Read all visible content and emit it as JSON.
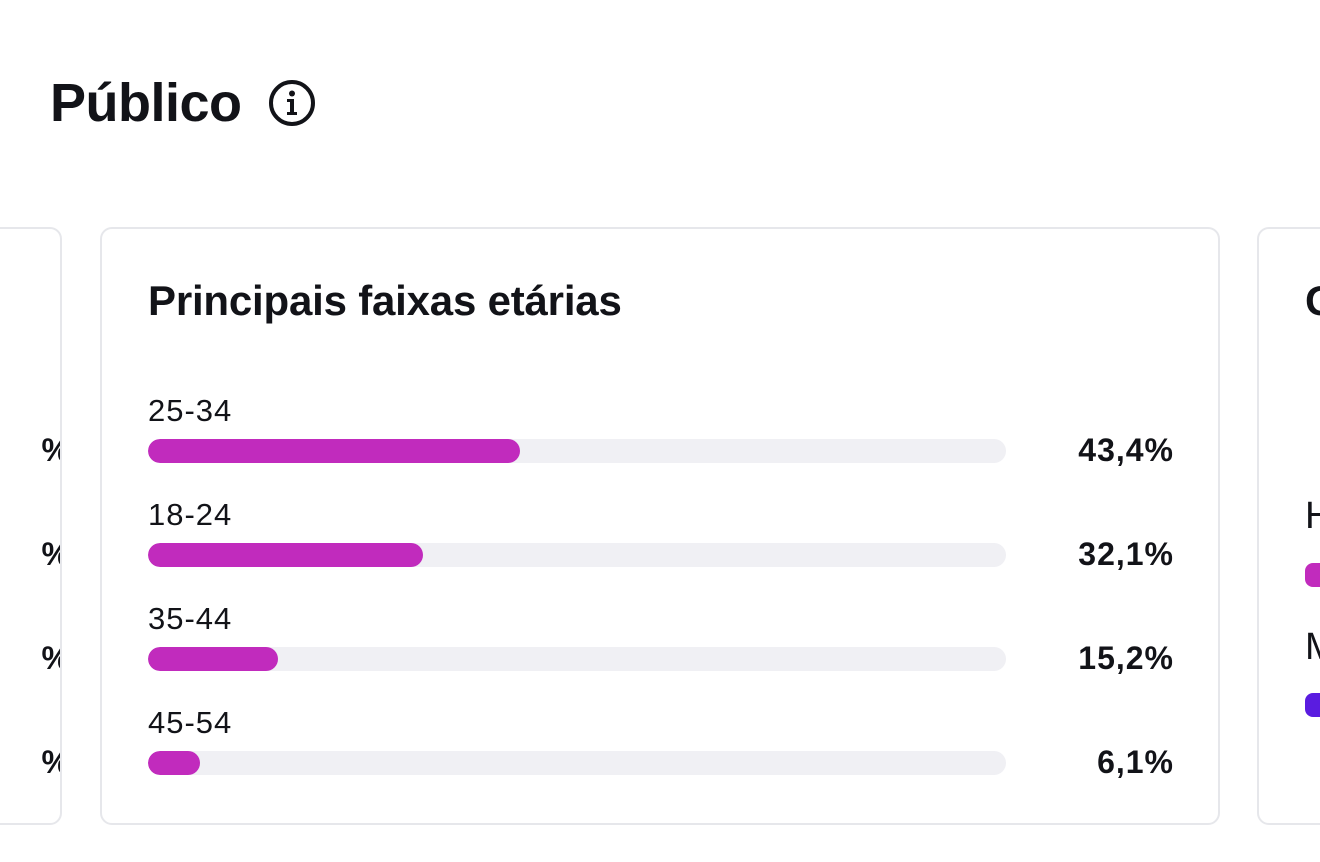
{
  "page": {
    "title": "Público"
  },
  "left_card": {
    "values": [
      "%",
      "%",
      "%",
      "%"
    ]
  },
  "age_card": {
    "title": "Principais faixas etárias",
    "rows": [
      {
        "label": "25-34",
        "value": "43,4%"
      },
      {
        "label": "18-24",
        "value": "32,1%"
      },
      {
        "label": "35-44",
        "value": "15,2%"
      },
      {
        "label": "45-54",
        "value": "6,1%"
      }
    ]
  },
  "right_card": {
    "title_partial": "G",
    "labels": [
      "H",
      "M"
    ]
  },
  "chart_data": {
    "type": "bar",
    "title": "Principais faixas etárias",
    "categories": [
      "25-34",
      "18-24",
      "35-44",
      "45-54"
    ],
    "values": [
      43.4,
      32.1,
      15.2,
      6.1
    ],
    "ylim": [
      0,
      100
    ]
  },
  "colors": {
    "bar_fill": "#c12bbd",
    "bar_track": "#f0f0f4",
    "card_border": "#e6e7eb",
    "legend_swatch_1": "#c12bbd",
    "legend_swatch_2": "#5a1ce0"
  },
  "icons": {
    "info": "info-circle-icon"
  }
}
